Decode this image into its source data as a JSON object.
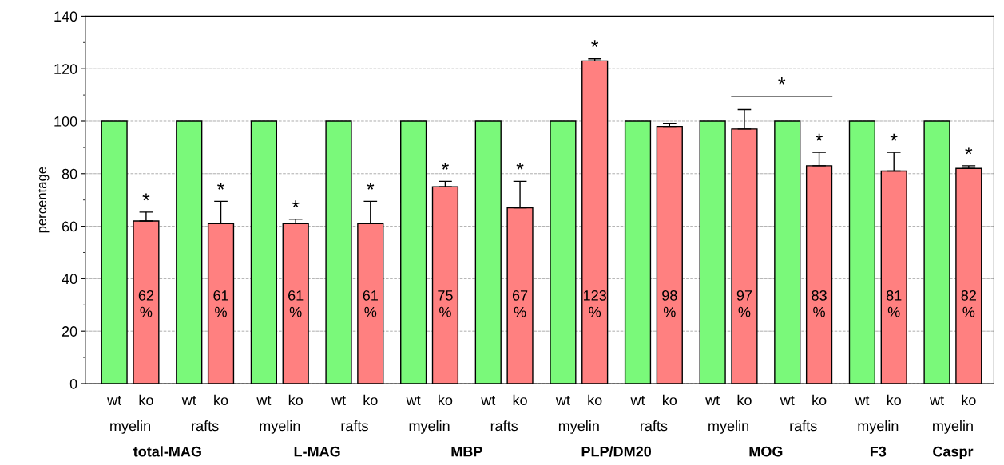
{
  "chart_data": {
    "type": "bar",
    "ylabel": "percentage",
    "categories": [
      "myelin",
      "rafts",
      "myelin",
      "rafts",
      "myelin",
      "rafts",
      "myelin",
      "rafts",
      "myelin",
      "rafts",
      "myelin",
      "myelin"
    ],
    "series": [
      {
        "name": "wt",
        "color": "#7af97a",
        "values": [
          100,
          100,
          100,
          100,
          100,
          100,
          100,
          100,
          100,
          100,
          100,
          100
        ]
      },
      {
        "name": "ko",
        "color": "#ff8080",
        "values": [
          62,
          61,
          61,
          61,
          75,
          67,
          123,
          98,
          97,
          83,
          81,
          82
        ],
        "errors": [
          [
            62,
            65.4
          ],
          [
            61,
            69.5
          ],
          [
            61,
            62.7
          ],
          [
            61,
            69.5
          ],
          [
            75,
            77.1
          ],
          [
            67,
            77.1
          ],
          [
            123,
            123.8
          ],
          [
            98,
            99.2
          ],
          [
            97,
            104.4
          ],
          [
            83,
            88.1
          ],
          [
            81,
            88.1
          ],
          [
            82,
            83.0
          ]
        ],
        "value_labels": [
          "62\n%",
          "61\n%",
          "61\n%",
          "61\n%",
          "75\n%",
          "67\n%",
          "123\n%",
          "98\n%",
          "97\n%",
          "83\n%",
          "81\n%",
          "82\n%"
        ]
      }
    ],
    "annotations": [
      "total-MAG",
      "L-MAG",
      "MBP",
      "PLP/DM20",
      "MOG",
      "F3",
      "Caspr",
      {
        "text": "*",
        "y": 65.4
      },
      {
        "text": "*",
        "y": 69.5
      },
      {
        "text": "*",
        "y": 62.7
      },
      {
        "text": "*",
        "y": 69.5
      },
      {
        "text": "*",
        "y": 77.1
      },
      {
        "text": "*",
        "y": 77.1
      },
      {
        "text": "*",
        "y": 123.8
      },
      {
        "text": "*",
        "y": 88.1
      },
      {
        "text": "*",
        "y": 88.1
      },
      {
        "text": "*",
        "y": 83.0
      },
      "*"
    ],
    "ylim": [
      0,
      140
    ],
    "yticks": [
      0,
      20,
      40,
      60,
      80,
      100,
      120,
      140
    ],
    "grid": "y",
    "legend": false
  }
}
